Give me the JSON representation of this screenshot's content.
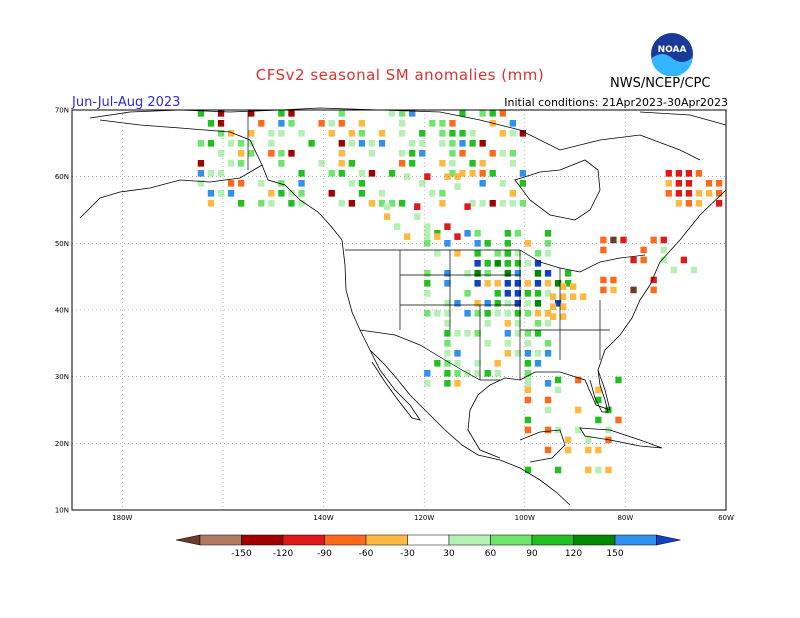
{
  "title": "CFSv2 seasonal SM anomalies (mm)",
  "period": "Jun-Jul-Aug 2023",
  "initial_conditions": "Initial conditions: 21Apr2023-30Apr2023",
  "organization": "NWS/NCEP/CPC",
  "logo_text": "NOAA",
  "map": {
    "lon_range": [
      -190,
      -60
    ],
    "lat_range": [
      10,
      70
    ],
    "lat_labels": [
      "10N",
      "20N",
      "30N",
      "40N",
      "50N",
      "60N",
      "70N"
    ],
    "lon_labels": [
      "180W",
      "140W",
      "120W",
      "100W",
      "80W",
      "60W"
    ]
  },
  "legend": {
    "tick_labels": [
      "-150",
      "-120",
      "-90",
      "-60",
      "-30",
      "30",
      "60",
      "90",
      "120",
      "150"
    ],
    "colors": {
      "lt_neg_150": "#6b3a2a",
      "neg_150_120": "#b07a63",
      "neg_120_90": "#a00000",
      "neg_90_60": "#e01818",
      "neg_60_30": "#ff6a1a",
      "neg_30_0": "#ffb840",
      "neutral": "#ffffff",
      "pos_30_60": "#b4f0b4",
      "pos_60_90": "#6ee66e",
      "pos_90_120": "#20c020",
      "pos_120_150": "#008800",
      "pos_150_plus": "#3090f0",
      "gt_pos_150": "#1040c8"
    }
  }
}
